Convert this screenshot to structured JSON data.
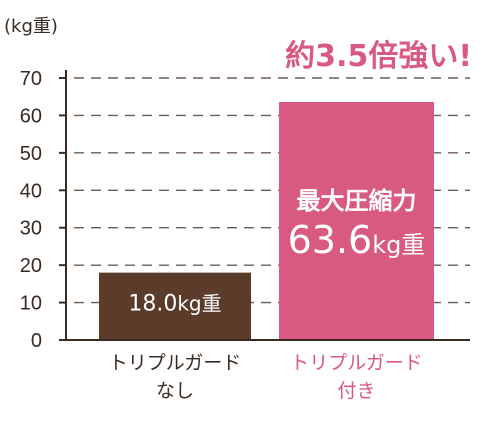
{
  "chart_data": {
    "type": "bar",
    "ylabel": "(kg重)",
    "ylim": [
      0,
      70
    ],
    "yticks": [
      0,
      10,
      20,
      30,
      40,
      50,
      60,
      70
    ],
    "grid": "dashed-horizontal",
    "headline": "約3.5倍強い!",
    "categories": [
      [
        "トリプルガード",
        "なし"
      ],
      [
        "トリプルガード",
        "付き"
      ]
    ],
    "values": [
      18.0,
      63.6
    ],
    "bar_labels": [
      {
        "lines": [
          {
            "number": "18.0",
            "unit": "kg重"
          }
        ]
      },
      {
        "caption": "最大圧縮力",
        "lines": [
          {
            "number": "63.6",
            "unit": "kg重"
          }
        ]
      }
    ],
    "colors": {
      "bar1": "#5b3b29",
      "bar2": "#d95a80",
      "cat1_text": "#3a2b22",
      "cat2_text": "#d95a80",
      "headline": "#d95a80",
      "axis": "#3a2b22",
      "grid": "#6e5c52"
    }
  }
}
